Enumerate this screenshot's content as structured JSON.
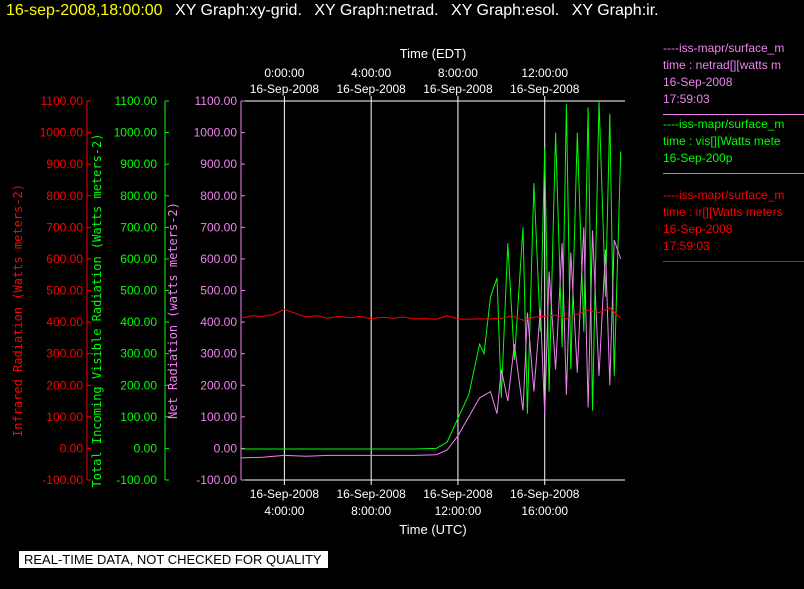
{
  "header": {
    "timestamp": "16-sep-2008,18:00:00",
    "tabs": [
      "XY Graph:xy-grid.",
      "XY Graph:netrad.",
      "XY Graph:esol.",
      "XY Graph:ir."
    ]
  },
  "colors": {
    "ir": "#ff0000",
    "vis": "#00ff00",
    "net": "#ee82ee",
    "axes": "#ffffff",
    "timestamp": "#ffff00"
  },
  "legend": [
    {
      "line1": "----iss-mapr/surface_m",
      "line2": "time : netrad[][watts m",
      "line3": "16-Sep-2008",
      "line4": "17:59:03",
      "color": "#ee82ee"
    },
    {
      "line1": "----iss-mapr/surface_m",
      "line2": "time : vis[][Watts mete",
      "line3": "16-Sep-200p",
      "line4": "",
      "color": "#00ff00"
    },
    {
      "line1": "----iss-mapr/surface_m",
      "line2": "time : ir[][Watts meters",
      "line3": "16-Sep-2008",
      "line4": "17:59:03",
      "color": "#ff0000"
    }
  ],
  "footer": "REAL-TIME DATA, NOT CHECKED FOR QUALITY",
  "chart_data": {
    "type": "line",
    "title": "",
    "xlabel_bottom": "Time (UTC)",
    "xlabel_top": "Time (EDT)",
    "x_unit": "hours UTC, 16-Sep-2008",
    "xlim": [
      2,
      19.7
    ],
    "ylim": [
      -100,
      1100
    ],
    "grid": "vertical lines at x ticks",
    "bottom_ticks": [
      {
        "x": 4,
        "date": "16-Sep-2008",
        "time": "4:00:00"
      },
      {
        "x": 8,
        "date": "16-Sep-2008",
        "time": "8:00:00"
      },
      {
        "x": 12,
        "date": "16-Sep-2008",
        "time": "12:00:00"
      },
      {
        "x": 16,
        "date": "16-Sep-2008",
        "time": "16:00:00"
      }
    ],
    "top_ticks": [
      {
        "x": 4,
        "time": "0:00:00",
        "date": "16-Sep-2008"
      },
      {
        "x": 8,
        "time": "4:00:00",
        "date": "16-Sep-2008"
      },
      {
        "x": 12,
        "time": "8:00:00",
        "date": "16-Sep-2008"
      },
      {
        "x": 16,
        "time": "12:00:00",
        "date": "16-Sep-2008"
      }
    ],
    "y_axes": [
      {
        "key": "ir",
        "label": "Infrared Radiation (Watts meters-2)",
        "ticks": [
          "1100.00",
          "1000.00",
          "900.00",
          "800.00",
          "700.00",
          "600.00",
          "500.00",
          "400.00",
          "300.00",
          "200.00",
          "100.00",
          "0.00",
          "-100.00"
        ]
      },
      {
        "key": "vis",
        "label": "Total Incoming Visible Radiation (Watts meters-2)",
        "ticks": [
          "1100.00",
          "1000.00",
          "900.00",
          "800.00",
          "700.00",
          "600.00",
          "500.00",
          "400.00",
          "300.00",
          "200.00",
          "100.00",
          "0.00",
          "-100.00"
        ]
      },
      {
        "key": "net",
        "label": "Net Radiation (watts meters-2)",
        "ticks": [
          "1100.00",
          "1000.00",
          "900.00",
          "800.00",
          "700.00",
          "600.00",
          "500.00",
          "400.00",
          "300.00",
          "200.00",
          "100.00",
          "0.00",
          "-100.00"
        ]
      }
    ],
    "series": [
      {
        "key": "ir",
        "x": [
          2,
          2.5,
          3,
          3.5,
          4,
          4.5,
          5,
          5.5,
          6,
          6.5,
          7,
          7.5,
          8,
          8.5,
          9,
          9.5,
          10,
          10.5,
          11,
          11.5,
          12,
          12.5,
          13,
          13.5,
          14,
          14.5,
          15,
          15.5,
          16,
          16.5,
          17,
          17.5,
          18,
          18.5,
          19,
          19.5
        ],
        "y": [
          412,
          420,
          418,
          424,
          440,
          428,
          416,
          420,
          412,
          418,
          414,
          418,
          410,
          415,
          412,
          416,
          410,
          411,
          409,
          420,
          410,
          409,
          410,
          410,
          412,
          420,
          406,
          415,
          418,
          422,
          410,
          425,
          438,
          430,
          445,
          412
        ]
      },
      {
        "key": "vis",
        "x": [
          2,
          4,
          6,
          8,
          10,
          11,
          11.5,
          12,
          12.5,
          13,
          13.2,
          13.5,
          13.8,
          14,
          14.3,
          14.6,
          15,
          15.2,
          15.5,
          15.8,
          16,
          16.2,
          16.5,
          16.8,
          17,
          17.2,
          17.5,
          17.8,
          18,
          18.2,
          18.5,
          18.8,
          19,
          19.2,
          19.5
        ],
        "y": [
          -2,
          -2,
          -2,
          -2,
          -2,
          0,
          20,
          95,
          170,
          330,
          300,
          480,
          540,
          160,
          650,
          280,
          700,
          110,
          840,
          370,
          950,
          180,
          1000,
          320,
          1090,
          250,
          1000,
          370,
          1080,
          120,
          1100,
          480,
          1060,
          230,
          940
        ]
      },
      {
        "key": "net",
        "x": [
          2,
          3,
          4,
          5,
          6,
          7,
          8,
          9,
          10,
          11,
          11.5,
          12,
          12.5,
          13,
          13.5,
          13.8,
          14,
          14.3,
          14.6,
          15,
          15.2,
          15.5,
          15.8,
          16,
          16.2,
          16.5,
          16.8,
          17,
          17.2,
          17.5,
          17.8,
          18,
          18.2,
          18.5,
          18.8,
          19,
          19.2,
          19.5
        ],
        "y": [
          -30,
          -28,
          -22,
          -25,
          -22,
          -22,
          -22,
          -22,
          -22,
          -20,
          -5,
          40,
          100,
          160,
          180,
          110,
          250,
          150,
          330,
          120,
          430,
          180,
          440,
          110,
          560,
          250,
          650,
          170,
          620,
          240,
          700,
          130,
          690,
          230,
          630,
          200,
          660,
          600
        ]
      }
    ]
  }
}
